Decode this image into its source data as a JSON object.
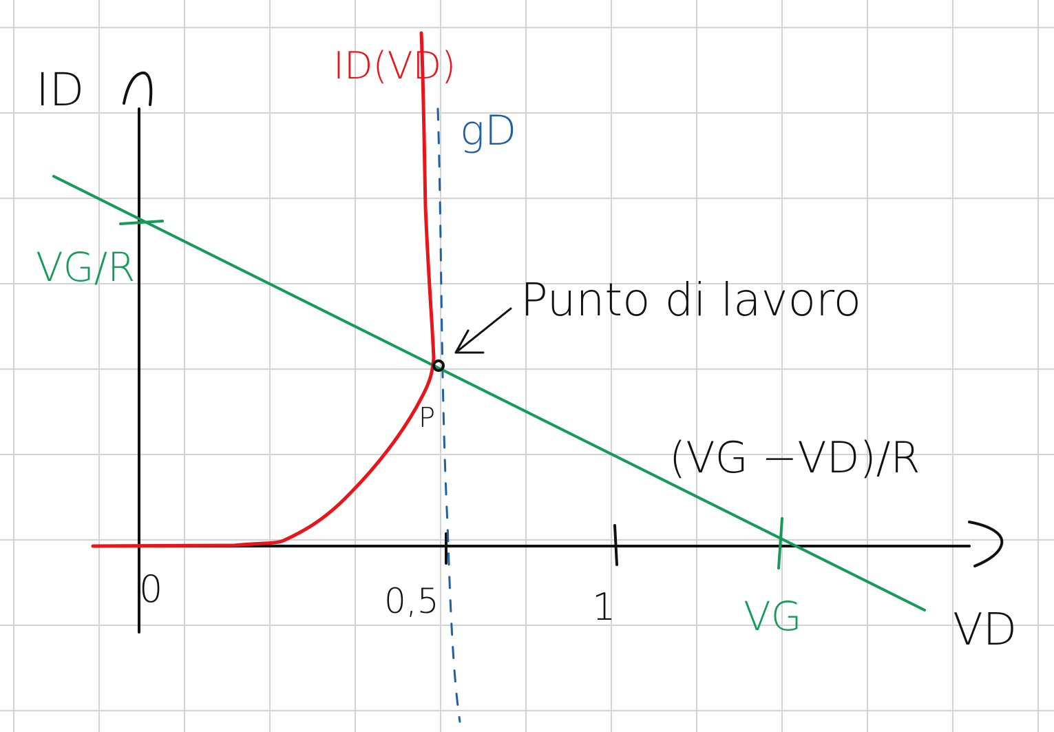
{
  "colors": {
    "grid": "#d3d3d3",
    "axes": "#111111",
    "diode_curve": "#e8161b",
    "load_line": "#169a5a",
    "threshold_line": "#1f5fa6"
  },
  "labels": {
    "y_axis": "ID",
    "x_axis": "VD",
    "origin": "0",
    "tick_half": "0,5",
    "tick_one": "1",
    "tick_vg": "VG",
    "intercept_y": "VG/R",
    "diode_curve": "ID(VD)",
    "threshold": "gD",
    "operating_point": "Punto di lavoro",
    "operating_point_symbol": "P",
    "load_line_eq": "(VG −VD)/R"
  }
}
